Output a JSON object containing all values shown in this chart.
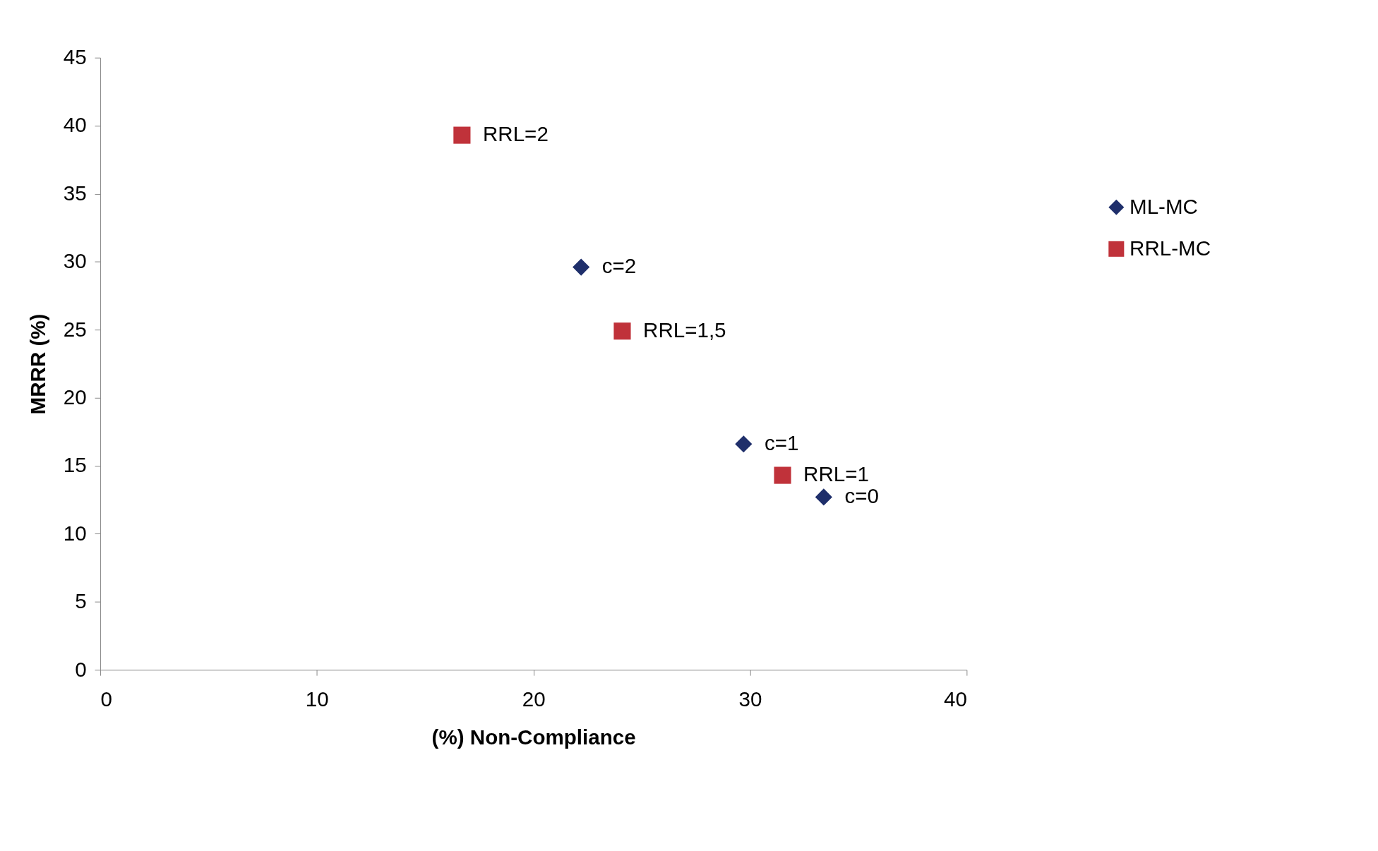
{
  "chart_data": {
    "type": "scatter",
    "xlabel": "(%) Non-Compliance",
    "ylabel": "MRRR (%)",
    "xlim": [
      0,
      40
    ],
    "xticks": [
      0,
      10,
      20,
      30,
      40
    ],
    "ylim": [
      0,
      45
    ],
    "yticks": [
      0,
      5,
      10,
      15,
      20,
      25,
      30,
      35,
      40,
      45
    ],
    "grid": false,
    "legend": "right",
    "series": [
      {
        "name": "ML-MC",
        "color": "#1f2f6b",
        "marker": "diamond",
        "x": [
          22.2,
          29.7,
          33.4
        ],
        "values": [
          29.6,
          16.6,
          12.7
        ]
      },
      {
        "name": "RRL-MC",
        "color": "#c0323a",
        "marker": "square",
        "x": [
          16.7,
          24.1,
          31.5
        ],
        "values": [
          39.3,
          24.9,
          14.3
        ]
      }
    ],
    "annotations": [
      {
        "text": "c=2",
        "x": 22.2,
        "y": 29.6
      },
      {
        "text": "c=1",
        "x": 29.7,
        "y": 16.6
      },
      {
        "text": "c=0",
        "x": 33.4,
        "y": 12.7
      },
      {
        "text": "RRL=2",
        "x": 16.7,
        "y": 39.3
      },
      {
        "text": "RRL=1,5",
        "x": 24.1,
        "y": 24.9
      },
      {
        "text": "RRL=1",
        "x": 31.5,
        "y": 14.3
      }
    ]
  }
}
